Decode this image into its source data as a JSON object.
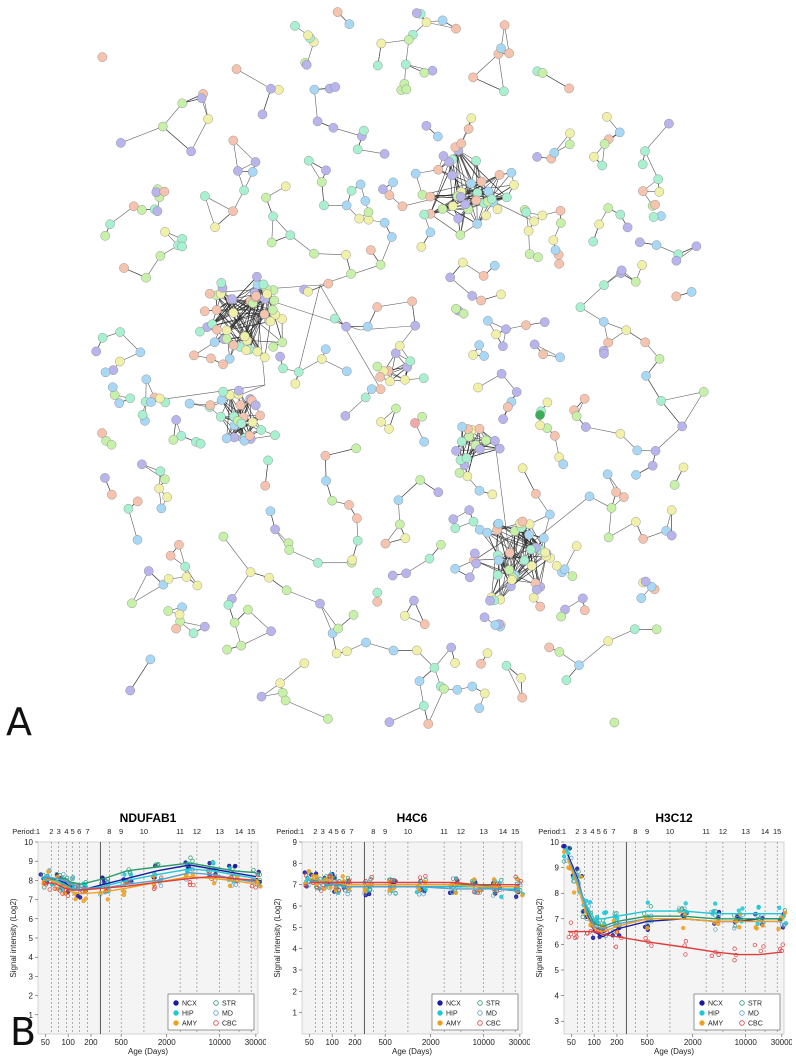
{
  "panel_labels": {
    "a": "A",
    "b": "B"
  },
  "network": {
    "description_colors": [
      "#c7f0a8",
      "#a8d8f5",
      "#b8b5ec",
      "#f5c3ae",
      "#f0f0a8",
      "#a8f0cf",
      "#f3a8a8"
    ],
    "edge_color": "#2b2b2b"
  },
  "chart_data": [
    {
      "type": "scatter",
      "title": "NDUFAB1",
      "period_label": "Period:",
      "periods": [
        "1",
        "2",
        "3",
        "4",
        "5",
        "6",
        "7",
        "8",
        "9",
        "10",
        "11",
        "12",
        "13",
        "14",
        "15"
      ],
      "period_days": [
        40,
        60,
        75,
        95,
        115,
        140,
        180,
        350,
        500,
        1000,
        3000,
        5000,
        10000,
        18000,
        26000
      ],
      "xlabel": "Age (Days)",
      "ylabel": "Signal intensity (Log2)",
      "x_scale": "log",
      "xlim": [
        40,
        32000
      ],
      "xticks": [
        50,
        100,
        200,
        500,
        2000,
        10000,
        30000
      ],
      "xtick_labels": [
        "50",
        "100",
        "200",
        "500",
        "2000",
        "10000",
        "30000"
      ],
      "ylim": [
        0,
        10
      ],
      "yticks": [
        1,
        2,
        3,
        4,
        5,
        6,
        7,
        8,
        9,
        10
      ],
      "birth_day": 266,
      "legend": [
        {
          "label": "NCX",
          "color": "#1a1aa0",
          "shape": "filled"
        },
        {
          "label": "STR",
          "color": "#2a9a6a",
          "shape": "open"
        },
        {
          "label": "HIP",
          "color": "#1ec8d8",
          "shape": "filled"
        },
        {
          "label": "MD",
          "color": "#5aa0c8",
          "shape": "open"
        },
        {
          "label": "AMY",
          "color": "#f0a020",
          "shape": "filled"
        },
        {
          "label": "CBC",
          "color": "#e03c3c",
          "shape": "open"
        }
      ],
      "series": [
        {
          "name": "NCX",
          "color": "#1a1aa0",
          "x": [
            50,
            70,
            90,
            110,
            150,
            300,
            600,
            1500,
            4000,
            8000,
            15000,
            30000
          ],
          "y": [
            8.1,
            8.0,
            7.9,
            7.6,
            7.5,
            7.8,
            8.1,
            8.5,
            8.8,
            8.6,
            8.4,
            8.2
          ]
        },
        {
          "name": "STR",
          "color": "#2a9a6a",
          "x": [
            50,
            70,
            90,
            110,
            150,
            300,
            600,
            1500,
            4000,
            8000,
            15000,
            30000
          ],
          "y": [
            8.0,
            8.1,
            8.1,
            7.9,
            7.8,
            8.1,
            8.5,
            8.7,
            8.9,
            8.7,
            8.5,
            8.4
          ]
        },
        {
          "name": "HIP",
          "color": "#1ec8d8",
          "x": [
            50,
            70,
            90,
            110,
            150,
            300,
            600,
            1500,
            4000,
            8000,
            15000,
            30000
          ],
          "y": [
            8.0,
            8.0,
            7.8,
            7.6,
            7.5,
            7.7,
            8.0,
            8.3,
            8.6,
            8.5,
            8.3,
            8.1
          ]
        },
        {
          "name": "MD",
          "color": "#5aa0c8",
          "x": [
            50,
            70,
            90,
            110,
            150,
            300,
            600,
            1500,
            4000,
            8000,
            15000,
            30000
          ],
          "y": [
            8.2,
            8.1,
            8.0,
            7.8,
            7.6,
            7.6,
            7.8,
            8.0,
            8.4,
            8.3,
            8.1,
            7.9
          ]
        },
        {
          "name": "AMY",
          "color": "#f0a020",
          "x": [
            50,
            70,
            90,
            110,
            150,
            300,
            600,
            1500,
            4000,
            8000,
            15000,
            30000
          ],
          "y": [
            8.1,
            7.9,
            7.7,
            7.4,
            7.3,
            7.4,
            7.6,
            7.9,
            8.2,
            8.1,
            8.0,
            7.8
          ]
        },
        {
          "name": "CBC",
          "color": "#e03c3c",
          "x": [
            50,
            70,
            90,
            110,
            150,
            300,
            600,
            1500,
            4000,
            8000,
            15000,
            30000
          ],
          "y": [
            7.9,
            7.8,
            7.6,
            7.5,
            7.5,
            7.6,
            7.7,
            7.9,
            8.1,
            8.2,
            8.1,
            8.0
          ]
        }
      ]
    },
    {
      "type": "scatter",
      "title": "H4C6",
      "period_label": "Period:",
      "periods": [
        "1",
        "2",
        "3",
        "4",
        "5",
        "6",
        "7",
        "8",
        "9",
        "10",
        "11",
        "12",
        "13",
        "14",
        "15"
      ],
      "period_days": [
        40,
        60,
        75,
        95,
        115,
        140,
        180,
        350,
        500,
        1000,
        3000,
        5000,
        10000,
        18000,
        26000
      ],
      "xlabel": "Age (Days)",
      "ylabel": "Signal intensity (Log2)",
      "x_scale": "log",
      "xlim": [
        40,
        32000
      ],
      "xticks": [
        50,
        100,
        200,
        500,
        2000,
        10000,
        30000
      ],
      "xtick_labels": [
        "50",
        "100",
        "200",
        "500",
        "2000",
        "10000",
        "30000"
      ],
      "ylim": [
        0,
        9
      ],
      "yticks": [
        1,
        2,
        3,
        4,
        5,
        6,
        7,
        8,
        9
      ],
      "birth_day": 266,
      "legend": [
        {
          "label": "NCX",
          "color": "#1a1aa0",
          "shape": "filled"
        },
        {
          "label": "STR",
          "color": "#2a9a6a",
          "shape": "open"
        },
        {
          "label": "HIP",
          "color": "#1ec8d8",
          "shape": "filled"
        },
        {
          "label": "MD",
          "color": "#5aa0c8",
          "shape": "open"
        },
        {
          "label": "AMY",
          "color": "#f0a020",
          "shape": "filled"
        },
        {
          "label": "CBC",
          "color": "#e03c3c",
          "shape": "open"
        }
      ],
      "series": [
        {
          "name": "NCX",
          "color": "#1a1aa0",
          "x": [
            50,
            70,
            90,
            110,
            150,
            300,
            600,
            1500,
            4000,
            8000,
            15000,
            30000
          ],
          "y": [
            7.3,
            7.2,
            7.1,
            7.0,
            6.9,
            6.9,
            6.9,
            6.9,
            6.9,
            6.9,
            6.8,
            6.7
          ]
        },
        {
          "name": "STR",
          "color": "#2a9a6a",
          "x": [
            50,
            70,
            90,
            110,
            150,
            300,
            600,
            1500,
            4000,
            8000,
            15000,
            30000
          ],
          "y": [
            7.2,
            7.2,
            7.1,
            7.0,
            7.0,
            7.0,
            7.0,
            7.0,
            7.0,
            7.0,
            6.9,
            6.9
          ]
        },
        {
          "name": "HIP",
          "color": "#1ec8d8",
          "x": [
            50,
            70,
            90,
            110,
            150,
            300,
            600,
            1500,
            4000,
            8000,
            15000,
            30000
          ],
          "y": [
            7.3,
            7.2,
            7.1,
            7.0,
            6.9,
            6.9,
            6.9,
            6.9,
            6.9,
            6.9,
            6.8,
            6.8
          ]
        },
        {
          "name": "MD",
          "color": "#5aa0c8",
          "x": [
            50,
            70,
            90,
            110,
            150,
            300,
            600,
            1500,
            4000,
            8000,
            15000,
            30000
          ],
          "y": [
            7.2,
            7.1,
            7.0,
            7.0,
            6.9,
            6.9,
            6.9,
            6.9,
            6.8,
            6.8,
            6.8,
            6.7
          ]
        },
        {
          "name": "AMY",
          "color": "#f0a020",
          "x": [
            50,
            70,
            90,
            110,
            150,
            300,
            600,
            1500,
            4000,
            8000,
            15000,
            30000
          ],
          "y": [
            7.3,
            7.2,
            7.2,
            7.1,
            7.0,
            7.0,
            7.0,
            7.0,
            7.0,
            6.9,
            6.9,
            6.9
          ]
        },
        {
          "name": "CBC",
          "color": "#e03c3c",
          "x": [
            50,
            70,
            90,
            110,
            150,
            300,
            600,
            1500,
            4000,
            8000,
            15000,
            30000
          ],
          "y": [
            7.1,
            7.1,
            7.1,
            7.1,
            7.1,
            7.1,
            7.1,
            7.1,
            7.1,
            7.0,
            7.0,
            7.0
          ]
        }
      ]
    },
    {
      "type": "scatter",
      "title": "H3C12",
      "period_label": "Period:",
      "periods": [
        "1",
        "2",
        "3",
        "4",
        "5",
        "6",
        "7",
        "8",
        "9",
        "10",
        "11",
        "12",
        "13",
        "14",
        "15"
      ],
      "period_days": [
        40,
        60,
        75,
        95,
        115,
        140,
        180,
        350,
        500,
        1000,
        3000,
        5000,
        10000,
        18000,
        26000
      ],
      "xlabel": "Age (Days)",
      "ylabel": "Signal intensity (Log2)",
      "x_scale": "log",
      "xlim": [
        40,
        32000
      ],
      "xticks": [
        50,
        100,
        200,
        500,
        2000,
        10000,
        30000
      ],
      "xtick_labels": [
        "50",
        "100",
        "200",
        "500",
        "2000",
        "10000",
        "30000"
      ],
      "ylim": [
        2.5,
        10
      ],
      "yticks": [
        3,
        4,
        5,
        6,
        7,
        8,
        9,
        10
      ],
      "birth_day": 266,
      "legend": [
        {
          "label": "NCX",
          "color": "#1a1aa0",
          "shape": "filled"
        },
        {
          "label": "STR",
          "color": "#2a9a6a",
          "shape": "open"
        },
        {
          "label": "HIP",
          "color": "#1ec8d8",
          "shape": "filled"
        },
        {
          "label": "MD",
          "color": "#5aa0c8",
          "shape": "open"
        },
        {
          "label": "AMY",
          "color": "#f0a020",
          "shape": "filled"
        },
        {
          "label": "CBC",
          "color": "#e03c3c",
          "shape": "open"
        }
      ],
      "series": [
        {
          "name": "NCX",
          "color": "#1a1aa0",
          "x": [
            45,
            60,
            80,
            100,
            130,
            200,
            500,
            1500,
            4000,
            8000,
            15000,
            30000
          ],
          "y": [
            9.5,
            8.6,
            7.3,
            6.5,
            6.3,
            6.6,
            6.9,
            7.0,
            6.9,
            6.9,
            7.0,
            7.0
          ]
        },
        {
          "name": "STR",
          "color": "#2a9a6a",
          "x": [
            45,
            60,
            80,
            100,
            130,
            200,
            500,
            1500,
            4000,
            8000,
            15000,
            30000
          ],
          "y": [
            9.4,
            8.5,
            7.4,
            6.8,
            6.7,
            6.9,
            7.1,
            7.1,
            7.0,
            7.0,
            7.0,
            7.0
          ]
        },
        {
          "name": "HIP",
          "color": "#1ec8d8",
          "x": [
            45,
            60,
            80,
            100,
            130,
            200,
            500,
            1500,
            4000,
            8000,
            15000,
            30000
          ],
          "y": [
            9.3,
            8.4,
            7.5,
            7.0,
            7.0,
            7.1,
            7.3,
            7.3,
            7.2,
            7.2,
            7.2,
            7.2
          ]
        },
        {
          "name": "MD",
          "color": "#5aa0c8",
          "x": [
            45,
            60,
            80,
            100,
            130,
            200,
            500,
            1500,
            4000,
            8000,
            15000,
            30000
          ],
          "y": [
            9.4,
            8.5,
            7.3,
            6.7,
            6.6,
            6.8,
            7.0,
            7.0,
            6.9,
            6.9,
            6.9,
            6.9
          ]
        },
        {
          "name": "AMY",
          "color": "#f0a020",
          "x": [
            45,
            60,
            80,
            100,
            130,
            200,
            500,
            1500,
            4000,
            8000,
            15000,
            30000
          ],
          "y": [
            9.3,
            8.3,
            7.1,
            6.6,
            6.5,
            6.7,
            7.0,
            7.0,
            6.9,
            6.9,
            6.9,
            6.9
          ]
        },
        {
          "name": "CBC",
          "color": "#e03c3c",
          "x": [
            45,
            60,
            80,
            100,
            130,
            200,
            500,
            1500,
            4000,
            8000,
            15000,
            30000
          ],
          "y": [
            6.5,
            6.5,
            6.5,
            6.5,
            6.4,
            6.3,
            6.1,
            5.9,
            5.7,
            5.6,
            5.6,
            5.7
          ]
        }
      ]
    }
  ]
}
